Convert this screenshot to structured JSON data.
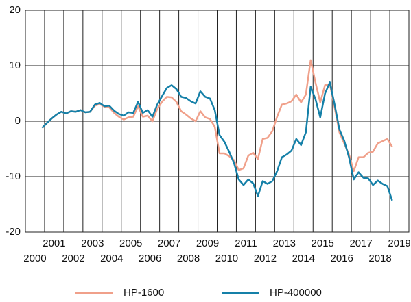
{
  "chart_data": {
    "type": "line",
    "x": [
      2000.875,
      2001.125,
      2001.375,
      2001.625,
      2001.875,
      2002.125,
      2002.375,
      2002.625,
      2002.875,
      2003.125,
      2003.375,
      2003.625,
      2003.875,
      2004.125,
      2004.375,
      2004.625,
      2004.875,
      2005.125,
      2005.375,
      2005.625,
      2005.875,
      2006.125,
      2006.375,
      2006.625,
      2006.875,
      2007.125,
      2007.375,
      2007.625,
      2007.875,
      2008.125,
      2008.375,
      2008.625,
      2008.875,
      2009.125,
      2009.375,
      2009.625,
      2009.875,
      2010.125,
      2010.375,
      2010.625,
      2010.875,
      2011.125,
      2011.375,
      2011.625,
      2011.875,
      2012.125,
      2012.375,
      2012.625,
      2012.875,
      2013.125,
      2013.375,
      2013.625,
      2013.875,
      2014.125,
      2014.375,
      2014.625,
      2014.875,
      2015.125,
      2015.375,
      2015.625,
      2015.875,
      2016.125,
      2016.375,
      2016.625,
      2016.875,
      2017.125,
      2017.375,
      2017.625,
      2017.875,
      2018.125,
      2018.375,
      2018.625,
      2018.875,
      2019.125
    ],
    "series": [
      {
        "name": "HP-1600",
        "color": "#f0a08a",
        "values": [
          -1.2,
          -0.3,
          0.5,
          1.2,
          1.7,
          1.4,
          1.8,
          1.7,
          2.0,
          1.6,
          1.7,
          2.8,
          3.1,
          2.6,
          2.5,
          1.5,
          0.8,
          0.3,
          0.7,
          0.8,
          2.7,
          0.8,
          1.0,
          0.0,
          2.2,
          3.5,
          4.4,
          4.3,
          3.5,
          1.8,
          1.2,
          0.5,
          0.0,
          1.8,
          0.7,
          0.4,
          -1.0,
          -5.8,
          -5.8,
          -6.3,
          -7.0,
          -8.8,
          -8.5,
          -6.2,
          -5.7,
          -6.8,
          -3.2,
          -3.0,
          -1.8,
          0.8,
          3.0,
          3.2,
          3.6,
          4.8,
          3.4,
          4.8,
          11.0,
          7.0,
          3.4,
          6.5,
          6.7,
          2.5,
          -2.0,
          -4.0,
          -6.0,
          -9.0,
          -6.5,
          -6.5,
          -5.7,
          -5.5,
          -4.0,
          -3.6,
          -3.2,
          -4.6
        ]
      },
      {
        "name": "HP-400000",
        "color": "#1580a8",
        "values": [
          -1.2,
          -0.3,
          0.5,
          1.2,
          1.7,
          1.4,
          1.8,
          1.7,
          2.0,
          1.6,
          1.7,
          3.0,
          3.3,
          2.7,
          2.8,
          1.9,
          1.3,
          1.0,
          1.6,
          1.5,
          3.5,
          1.5,
          2.0,
          0.8,
          3.0,
          4.5,
          6.0,
          6.5,
          5.8,
          4.4,
          4.2,
          3.6,
          3.2,
          5.4,
          4.4,
          4.1,
          2.0,
          -2.5,
          -3.7,
          -5.5,
          -7.5,
          -10.5,
          -11.5,
          -10.5,
          -11.2,
          -13.5,
          -10.8,
          -11.3,
          -10.8,
          -9.0,
          -6.5,
          -6.0,
          -5.3,
          -3.2,
          -4.3,
          -2.0,
          6.2,
          4.0,
          0.7,
          5.0,
          7.0,
          3.0,
          -1.5,
          -3.5,
          -6.5,
          -10.5,
          -9.2,
          -10.2,
          -10.3,
          -11.5,
          -10.7,
          -11.3,
          -11.7,
          -14.3
        ]
      }
    ],
    "xlim": [
      2000,
      2020
    ],
    "xticks": [
      {
        "value": 2000.5,
        "label": "2000"
      },
      {
        "value": 2001.5,
        "label": "2001"
      },
      {
        "value": 2002.5,
        "label": "2002"
      },
      {
        "value": 2003.5,
        "label": "2003"
      },
      {
        "value": 2004.5,
        "label": "2004"
      },
      {
        "value": 2005.5,
        "label": "2005"
      },
      {
        "value": 2006.5,
        "label": "2006"
      },
      {
        "value": 2007.5,
        "label": "2007"
      },
      {
        "value": 2008.5,
        "label": "2008"
      },
      {
        "value": 2009.5,
        "label": "2009"
      },
      {
        "value": 2010.5,
        "label": "2010"
      },
      {
        "value": 2011.5,
        "label": "2011"
      },
      {
        "value": 2012.5,
        "label": "2012"
      },
      {
        "value": 2013.5,
        "label": "2013"
      },
      {
        "value": 2014.5,
        "label": "2014"
      },
      {
        "value": 2015.5,
        "label": "2015"
      },
      {
        "value": 2016.5,
        "label": "2016"
      },
      {
        "value": 2017.5,
        "label": "2017"
      },
      {
        "value": 2018.5,
        "label": "2018"
      },
      {
        "value": 2019.5,
        "label": "2019"
      }
    ],
    "xgrid": [
      2001,
      2002,
      2003,
      2004,
      2005,
      2006,
      2007,
      2008,
      2009,
      2010,
      2011,
      2012,
      2013,
      2014,
      2015,
      2016,
      2017,
      2018,
      2019
    ],
    "ylim": [
      -20,
      20
    ],
    "yticks": [
      -20,
      -10,
      0,
      10,
      20
    ],
    "grid": true,
    "legend": "bottom"
  }
}
